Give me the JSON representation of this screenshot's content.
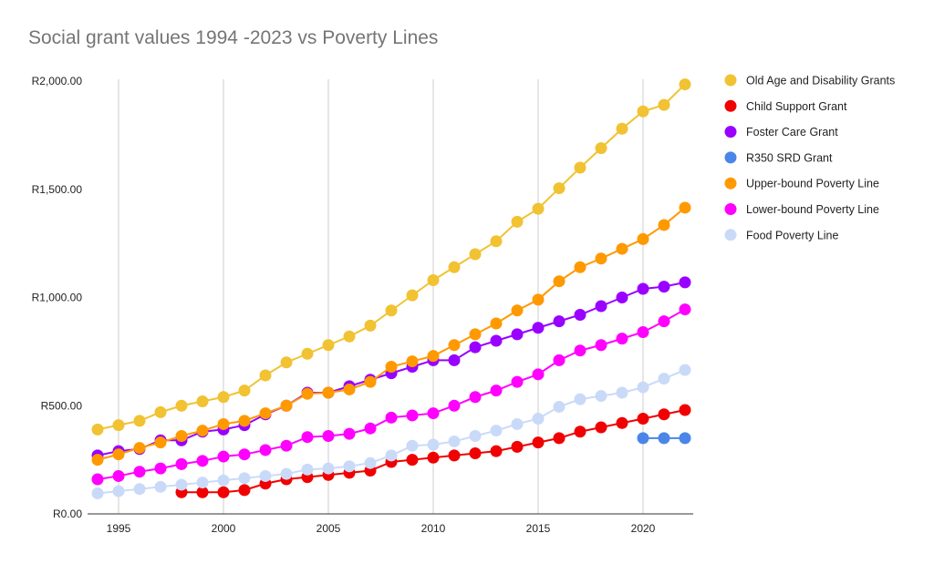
{
  "chart_data": {
    "type": "line",
    "title": "Social grant values 1994 -2023 vs Poverty Lines",
    "xlabel": "",
    "ylabel": "",
    "xlim": [
      1993.5,
      2023
    ],
    "ylim": [
      0,
      2000
    ],
    "x_ticks": [
      1995,
      2000,
      2005,
      2010,
      2015,
      2020
    ],
    "x_tick_labels": [
      "1995",
      "2000",
      "2005",
      "2010",
      "2015",
      "2020"
    ],
    "y_ticks": [
      0,
      500,
      1000,
      1500,
      2000
    ],
    "y_tick_labels": [
      "R0.00",
      "R500.00",
      "R1,000.00",
      "R1,500.00",
      "R2,000.00"
    ],
    "grid": "vertical",
    "legend_position": "right",
    "series": [
      {
        "name": "Old Age and Disability Grants",
        "color": "#F1C232",
        "x": [
          1994,
          1995,
          1996,
          1997,
          1998,
          1999,
          2000,
          2001,
          2002,
          2003,
          2004,
          2005,
          2006,
          2007,
          2008,
          2009,
          2010,
          2011,
          2012,
          2013,
          2014,
          2015,
          2016,
          2017,
          2018,
          2019,
          2020,
          2021,
          2022
        ],
        "values": [
          390,
          410,
          430,
          470,
          500,
          520,
          540,
          570,
          640,
          700,
          740,
          780,
          820,
          870,
          940,
          1010,
          1080,
          1140,
          1200,
          1260,
          1350,
          1410,
          1505,
          1600,
          1690,
          1780,
          1860,
          1890,
          1985
        ]
      },
      {
        "name": "Child Support Grant",
        "color": "#F00000",
        "x": [
          1998,
          1999,
          2000,
          2001,
          2002,
          2003,
          2004,
          2005,
          2006,
          2007,
          2008,
          2009,
          2010,
          2011,
          2012,
          2013,
          2014,
          2015,
          2016,
          2017,
          2018,
          2019,
          2020,
          2021,
          2022
        ],
        "values": [
          100,
          100,
          100,
          110,
          140,
          160,
          170,
          180,
          190,
          200,
          240,
          250,
          260,
          270,
          280,
          290,
          310,
          330,
          350,
          380,
          400,
          420,
          440,
          460,
          480
        ]
      },
      {
        "name": "Foster Care Grant",
        "color": "#9900FF",
        "x": [
          1994,
          1995,
          1996,
          1997,
          1998,
          1999,
          2000,
          2001,
          2002,
          2003,
          2004,
          2005,
          2006,
          2007,
          2008,
          2009,
          2010,
          2011,
          2012,
          2013,
          2014,
          2015,
          2016,
          2017,
          2018,
          2019,
          2020,
          2021,
          2022
        ],
        "values": [
          270,
          290,
          300,
          340,
          340,
          380,
          390,
          410,
          460,
          500,
          560,
          560,
          590,
          620,
          650,
          680,
          710,
          710,
          770,
          800,
          830,
          860,
          890,
          920,
          960,
          1000,
          1040,
          1050,
          1070
        ]
      },
      {
        "name": "R350 SRD Grant",
        "color": "#4A86E8",
        "x": [
          2020,
          2021,
          2022
        ],
        "values": [
          350,
          350,
          350
        ]
      },
      {
        "name": "Upper-bound Poverty Line",
        "color": "#FF9900",
        "x": [
          1994,
          1995,
          1996,
          1997,
          1998,
          1999,
          2000,
          2001,
          2002,
          2003,
          2004,
          2005,
          2006,
          2007,
          2008,
          2009,
          2010,
          2011,
          2012,
          2013,
          2014,
          2015,
          2016,
          2017,
          2018,
          2019,
          2020,
          2021,
          2022
        ],
        "values": [
          250,
          275,
          305,
          330,
          360,
          385,
          415,
          430,
          465,
          500,
          555,
          560,
          575,
          610,
          680,
          705,
          730,
          780,
          830,
          880,
          940,
          990,
          1075,
          1140,
          1180,
          1225,
          1270,
          1335,
          1415
        ]
      },
      {
        "name": "Lower-bound Poverty Line",
        "color": "#FF00FF",
        "x": [
          1994,
          1995,
          1996,
          1997,
          1998,
          1999,
          2000,
          2001,
          2002,
          2003,
          2004,
          2005,
          2006,
          2007,
          2008,
          2009,
          2010,
          2011,
          2012,
          2013,
          2014,
          2015,
          2016,
          2017,
          2018,
          2019,
          2020,
          2021,
          2022
        ],
        "values": [
          160,
          175,
          195,
          210,
          230,
          245,
          265,
          275,
          295,
          315,
          355,
          360,
          370,
          395,
          445,
          455,
          465,
          500,
          540,
          570,
          610,
          645,
          710,
          755,
          780,
          810,
          840,
          890,
          945
        ]
      },
      {
        "name": "Food Poverty Line",
        "color": "#C9DAF8",
        "x": [
          1994,
          1995,
          1996,
          1997,
          1998,
          1999,
          2000,
          2001,
          2002,
          2003,
          2004,
          2005,
          2006,
          2007,
          2008,
          2009,
          2010,
          2011,
          2012,
          2013,
          2014,
          2015,
          2016,
          2017,
          2018,
          2019,
          2020,
          2021,
          2022
        ],
        "values": [
          95,
          105,
          115,
          125,
          135,
          145,
          155,
          165,
          175,
          185,
          205,
          210,
          220,
          235,
          270,
          315,
          320,
          335,
          360,
          385,
          415,
          440,
          495,
          530,
          545,
          560,
          585,
          625,
          665
        ]
      }
    ]
  }
}
